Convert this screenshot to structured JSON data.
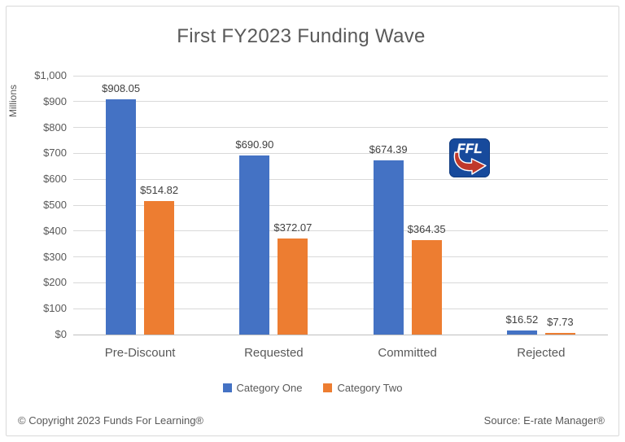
{
  "chart_data": {
    "type": "bar",
    "title": "First FY2023 Funding Wave",
    "xlabel": "",
    "ylabel": "Millions",
    "categories": [
      "Pre-Discount",
      "Requested",
      "Committed",
      "Rejected"
    ],
    "series": [
      {
        "name": "Category One",
        "color": "#4472C4",
        "values": [
          908.05,
          690.9,
          674.39,
          16.52
        ],
        "labels": [
          "$908.05",
          "$690.90",
          "$674.39",
          "$16.52"
        ]
      },
      {
        "name": "Category Two",
        "color": "#ED7D31",
        "values": [
          514.82,
          372.07,
          364.35,
          7.73
        ],
        "labels": [
          "$514.82",
          "$372.07",
          "$364.35",
          "$7.73"
        ]
      }
    ],
    "ylim": [
      0,
      1000
    ],
    "ytick_step": 100,
    "ytick_labels": [
      "$0",
      "$100",
      "$200",
      "$300",
      "$400",
      "$500",
      "$600",
      "$700",
      "$800",
      "$900",
      "$1,000"
    ],
    "grid": true,
    "legend_position": "bottom"
  },
  "logo": {
    "text": "FFL"
  },
  "footer": {
    "copyright": "© Copyright 2023 Funds For Learning®",
    "source": "Source: E-rate Manager®"
  }
}
